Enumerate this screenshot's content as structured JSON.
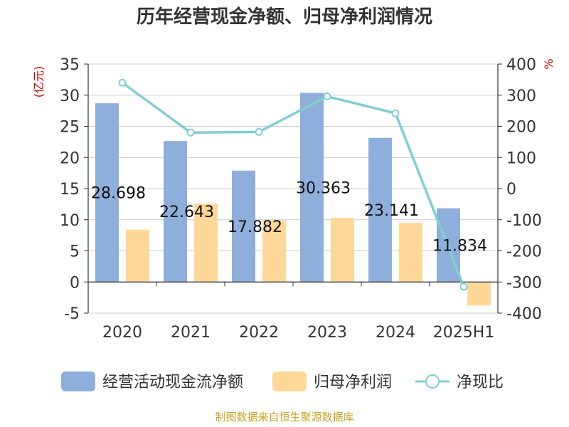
{
  "chart_data": {
    "type": "bar",
    "title": "历年经营现金净额、归母净利润情况",
    "categories": [
      "2020",
      "2021",
      "2022",
      "2023",
      "2024",
      "2025H1"
    ],
    "series": [
      {
        "name": "经营活动现金流净额",
        "type": "bar",
        "axis": "left",
        "color": "#8eaedb",
        "values": [
          28.698,
          22.643,
          17.882,
          30.363,
          23.141,
          11.834
        ]
      },
      {
        "name": "归母净利润",
        "type": "bar",
        "axis": "left",
        "color": "#ffd899",
        "values": [
          8.4,
          12.6,
          9.9,
          10.3,
          9.5,
          -3.8
        ]
      },
      {
        "name": "净现比",
        "type": "line",
        "axis": "right",
        "color": "#80cfd3",
        "values": [
          340,
          180,
          182,
          296,
          242,
          -315
        ]
      }
    ],
    "data_labels": [
      "28.698",
      "22.643",
      "17.882",
      "30.363",
      "23.141",
      "11.834"
    ],
    "left_axis": {
      "unit": "(亿元)",
      "range": [
        -5,
        35
      ],
      "ticks": [
        -5,
        0,
        5,
        10,
        15,
        20,
        25,
        30,
        35
      ]
    },
    "right_axis": {
      "unit": "%",
      "range": [
        -400,
        400
      ],
      "ticks": [
        -400,
        -300,
        -200,
        -100,
        0,
        100,
        200,
        300,
        400
      ]
    },
    "grid": true,
    "legend_position": "bottom",
    "source": "制图数据来自恒生聚源数据库"
  }
}
